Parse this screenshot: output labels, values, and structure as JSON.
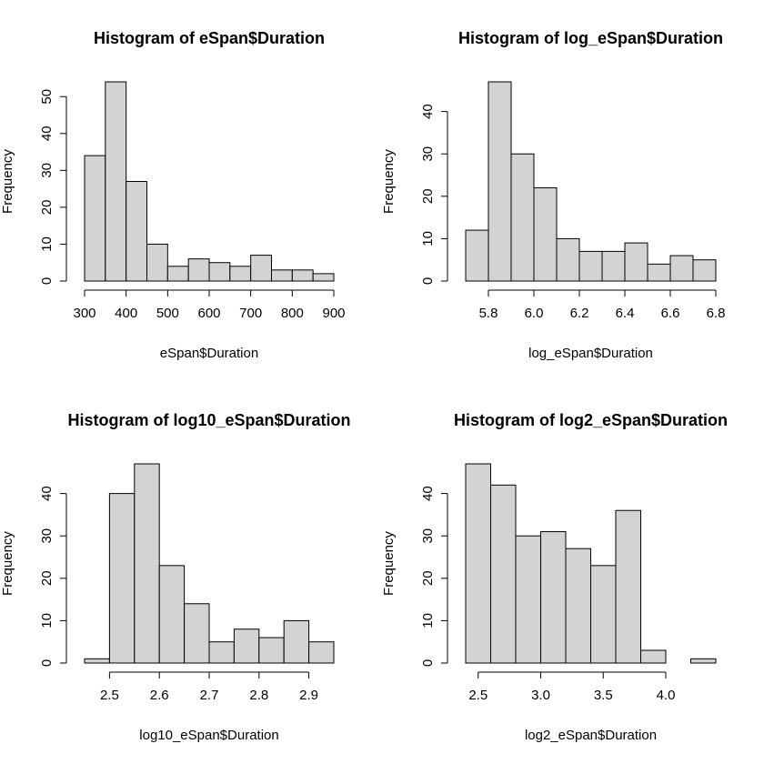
{
  "chart_data": [
    {
      "type": "bar",
      "title": "Histogram of eSpan$Duration",
      "xlabel": "eSpan$Duration",
      "ylabel": "Frequency",
      "bin_edges": [
        300,
        350,
        400,
        450,
        500,
        550,
        600,
        650,
        700,
        750,
        800,
        850,
        900
      ],
      "values": [
        34,
        54,
        27,
        10,
        4,
        6,
        5,
        4,
        7,
        3,
        3,
        2
      ],
      "xlim": [
        300,
        900
      ],
      "ylim": [
        0,
        54
      ],
      "x_ticks": [
        300,
        400,
        500,
        600,
        700,
        800,
        900
      ],
      "x_tick_labels": [
        "300",
        "400",
        "500",
        "600",
        "700",
        "800",
        "900"
      ],
      "y_ticks": [
        0,
        10,
        20,
        30,
        40,
        50
      ],
      "y_tick_labels": [
        "0",
        "10",
        "20",
        "30",
        "40",
        "50"
      ]
    },
    {
      "type": "bar",
      "title": "Histogram of log_eSpan$Duration",
      "xlabel": "log_eSpan$Duration",
      "ylabel": "Frequency",
      "bin_edges": [
        5.7,
        5.8,
        5.9,
        6.0,
        6.1,
        6.2,
        6.3,
        6.4,
        6.5,
        6.6,
        6.7,
        6.8
      ],
      "values": [
        12,
        47,
        30,
        22,
        10,
        7,
        7,
        9,
        4,
        6,
        5
      ],
      "xlim": [
        5.7,
        6.8
      ],
      "ylim": [
        0,
        47
      ],
      "x_ticks": [
        5.8,
        6.0,
        6.2,
        6.4,
        6.6,
        6.8
      ],
      "x_tick_labels": [
        "5.8",
        "6.0",
        "6.2",
        "6.4",
        "6.6",
        "6.8"
      ],
      "y_ticks": [
        0,
        10,
        20,
        30,
        40
      ],
      "y_tick_labels": [
        "0",
        "10",
        "20",
        "30",
        "40"
      ]
    },
    {
      "type": "bar",
      "title": "Histogram of log10_eSpan$Duration",
      "xlabel": "log10_eSpan$Duration",
      "ylabel": "Frequency",
      "bin_edges": [
        2.45,
        2.5,
        2.55,
        2.6,
        2.65,
        2.7,
        2.75,
        2.8,
        2.85,
        2.9,
        2.95
      ],
      "values": [
        1,
        40,
        47,
        23,
        14,
        5,
        8,
        6,
        10,
        5
      ],
      "xlim": [
        2.45,
        2.95
      ],
      "ylim": [
        0,
        47
      ],
      "x_ticks": [
        2.5,
        2.6,
        2.7,
        2.8,
        2.9
      ],
      "x_tick_labels": [
        "2.5",
        "2.6",
        "2.7",
        "2.8",
        "2.9"
      ],
      "y_ticks": [
        0,
        10,
        20,
        30,
        40
      ],
      "y_tick_labels": [
        "0",
        "10",
        "20",
        "30",
        "40"
      ]
    },
    {
      "type": "bar",
      "title": "Histogram of log2_eSpan$Duration",
      "xlabel": "log2_eSpan$Duration",
      "ylabel": "Frequency",
      "bin_edges": [
        2.4,
        2.6,
        2.8,
        3.0,
        3.2,
        3.4,
        3.6,
        3.8,
        4.0,
        4.2,
        4.4
      ],
      "values": [
        47,
        42,
        30,
        31,
        27,
        23,
        36,
        3,
        0,
        1
      ],
      "xlim": [
        2.4,
        4.4
      ],
      "ylim": [
        0,
        47
      ],
      "x_ticks": [
        2.5,
        3.0,
        3.5,
        4.0
      ],
      "x_tick_labels": [
        "2.5",
        "3.0",
        "3.5",
        "4.0"
      ],
      "y_ticks": [
        0,
        10,
        20,
        30,
        40
      ],
      "y_tick_labels": [
        "0",
        "10",
        "20",
        "30",
        "40"
      ]
    }
  ],
  "colors": {
    "bar_fill": "#d3d3d3",
    "bar_stroke": "#000000"
  }
}
